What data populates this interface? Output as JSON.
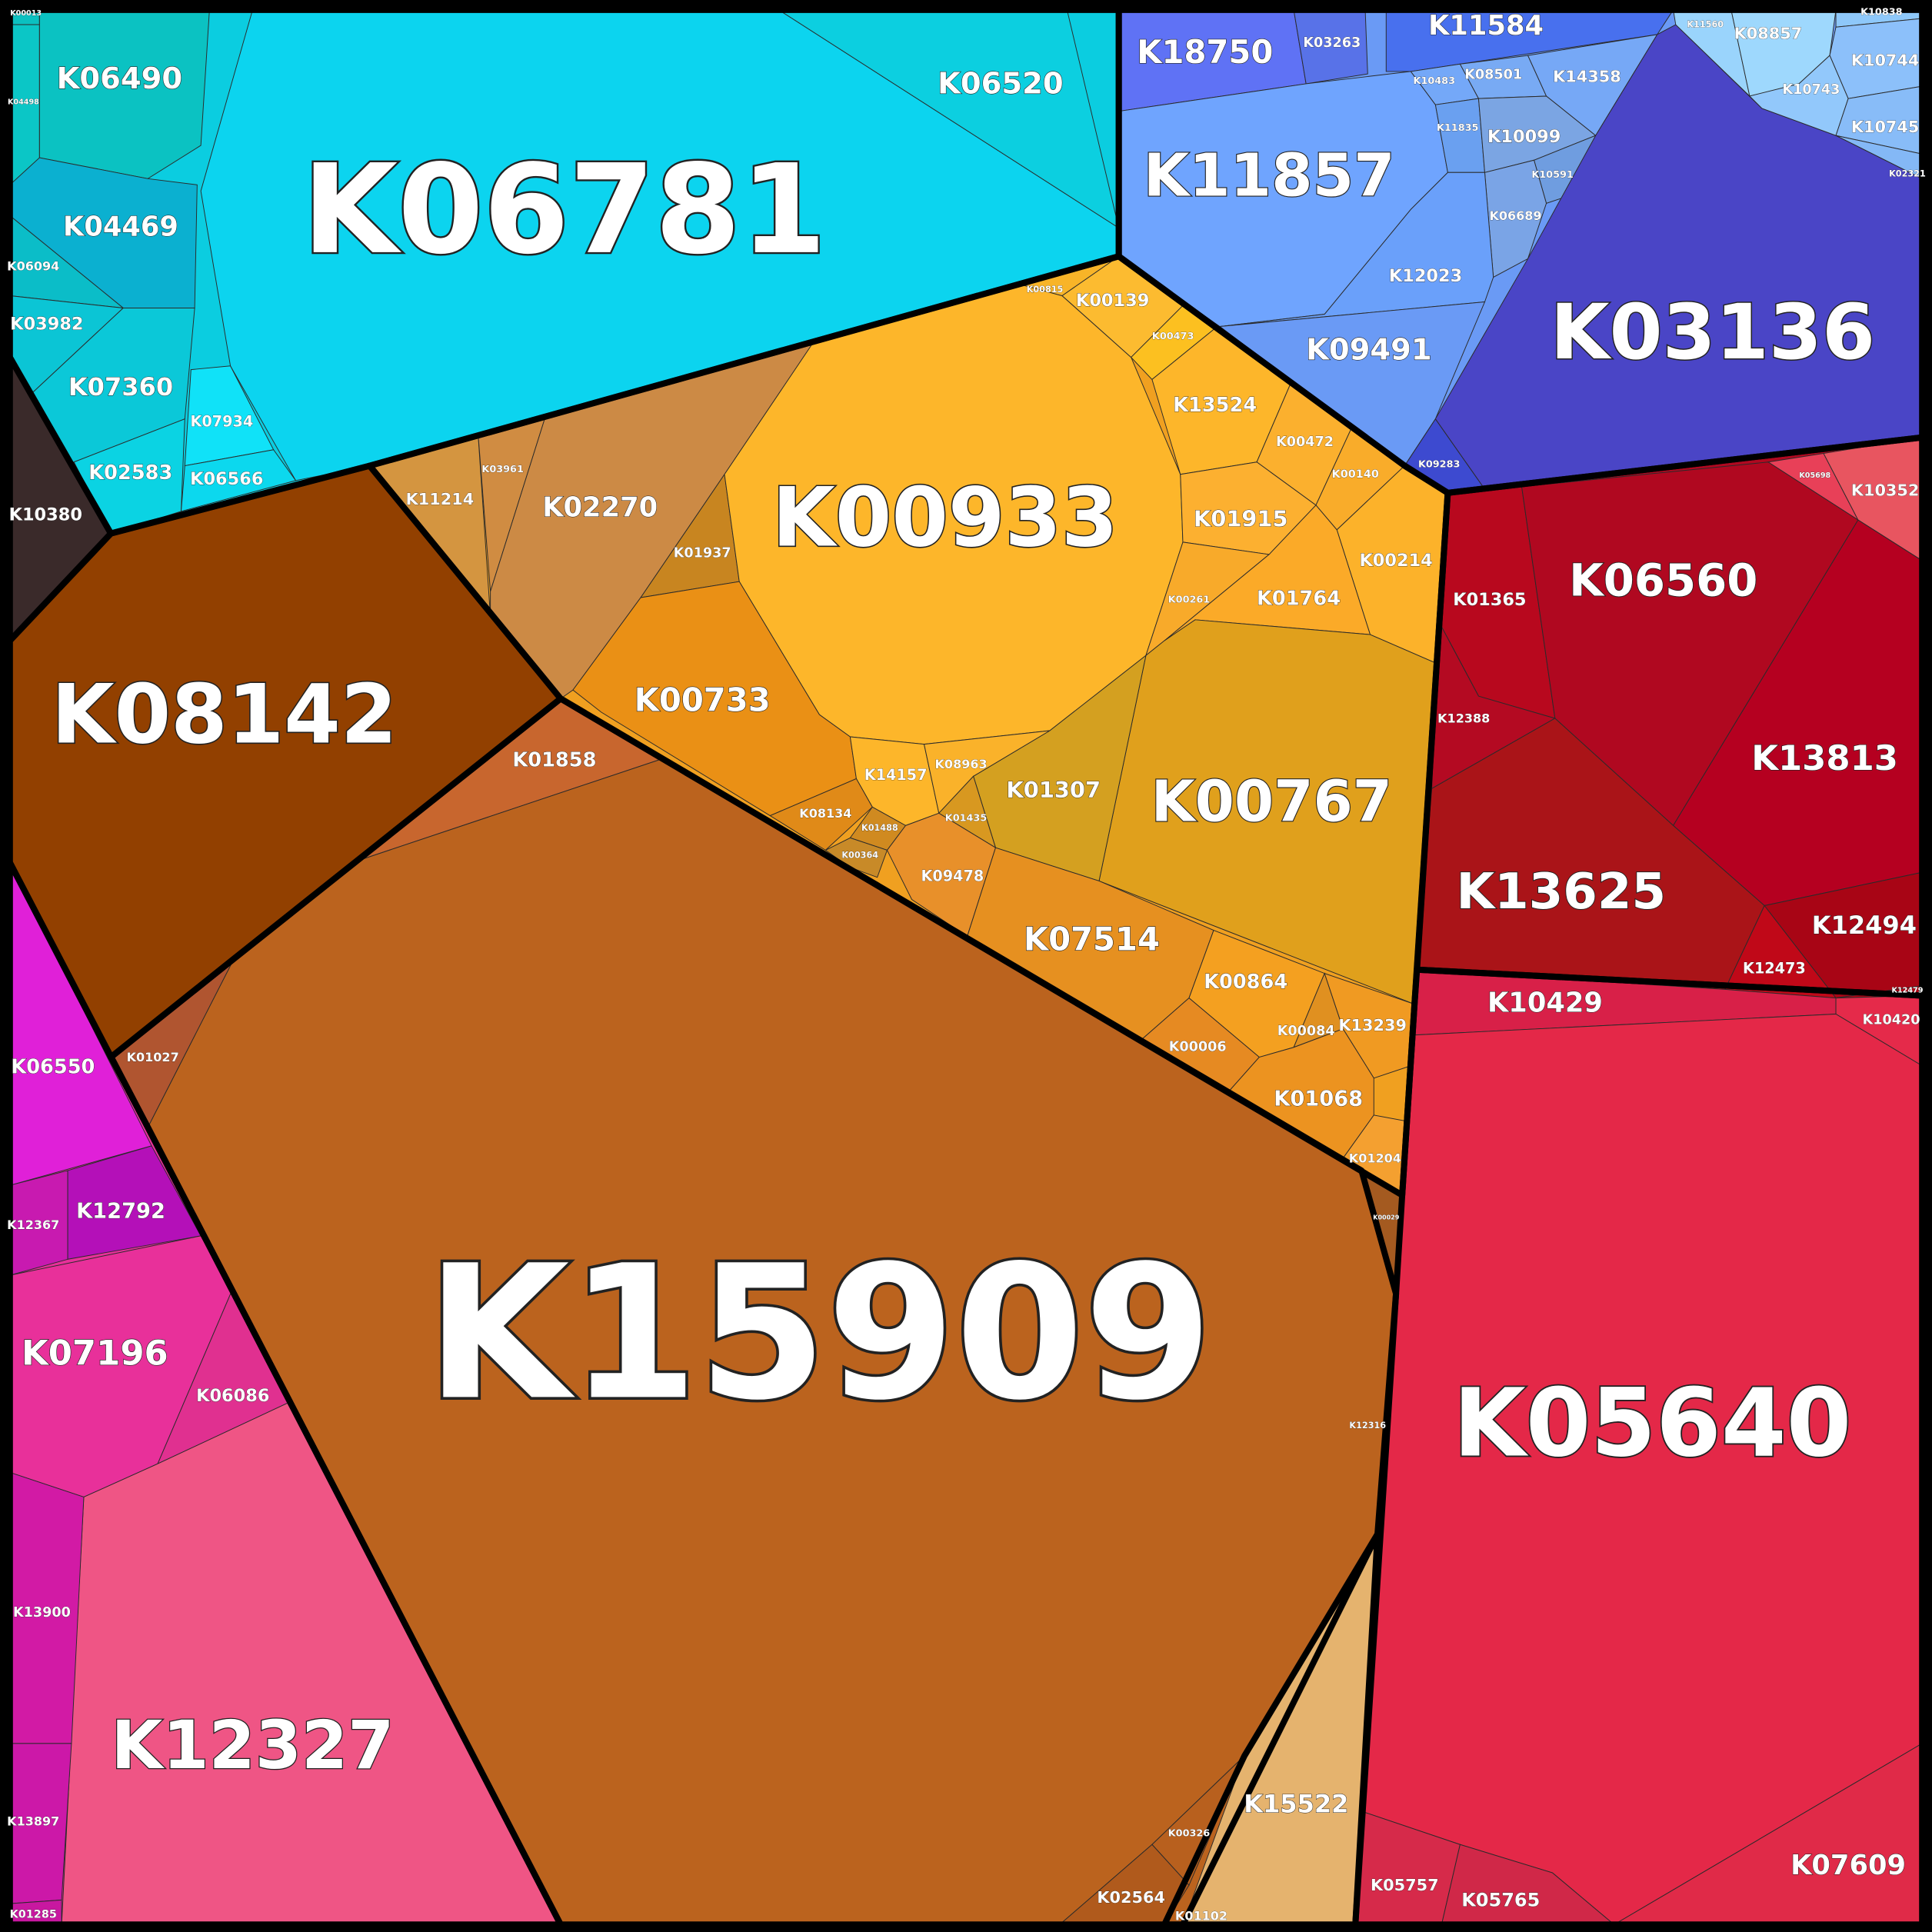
{
  "cells": [
    {
      "label": "K06781"
    },
    {
      "label": "K06520"
    },
    {
      "label": "K06490"
    },
    {
      "label": "K04469"
    },
    {
      "label": "K06094"
    },
    {
      "label": "K03982"
    },
    {
      "label": "K07360"
    },
    {
      "label": "K02583"
    },
    {
      "label": "K07934"
    },
    {
      "label": "K06566"
    },
    {
      "label": "K10380"
    },
    {
      "label": "K08142"
    },
    {
      "label": "K11214"
    },
    {
      "label": "K03961"
    },
    {
      "label": "K02270"
    },
    {
      "label": "K01937"
    },
    {
      "label": "K00933"
    },
    {
      "label": "K00733"
    },
    {
      "label": "K01858"
    },
    {
      "label": "K01027"
    },
    {
      "label": "K15909"
    },
    {
      "label": "K00139"
    },
    {
      "label": "K00815"
    },
    {
      "label": "K00473"
    },
    {
      "label": "K13524"
    },
    {
      "label": "K00472"
    },
    {
      "label": "K00140"
    },
    {
      "label": "K01915"
    },
    {
      "label": "K00214"
    },
    {
      "label": "K00261"
    },
    {
      "label": "K01764"
    },
    {
      "label": "K00767"
    },
    {
      "label": "K01307"
    },
    {
      "label": "K14157"
    },
    {
      "label": "K08963"
    },
    {
      "label": "K08134"
    },
    {
      "label": "K01435"
    },
    {
      "label": "K01488"
    },
    {
      "label": "K00364"
    },
    {
      "label": "K09478"
    },
    {
      "label": "K07514"
    },
    {
      "label": "K00864"
    },
    {
      "label": "K00006"
    },
    {
      "label": "K00084"
    },
    {
      "label": "K13239"
    },
    {
      "label": "K01068"
    },
    {
      "label": "K01204"
    },
    {
      "label": "K00029"
    },
    {
      "label": "K12316"
    },
    {
      "label": "K15522"
    },
    {
      "label": "K00326"
    },
    {
      "label": "K02564"
    },
    {
      "label": "K01102"
    },
    {
      "label": "K18750"
    },
    {
      "label": "K03263"
    },
    {
      "label": "K11584"
    },
    {
      "label": "K11857"
    },
    {
      "label": "K10483"
    },
    {
      "label": "K08501"
    },
    {
      "label": "K14358"
    },
    {
      "label": "K11835"
    },
    {
      "label": "K10099"
    },
    {
      "label": "K10591"
    },
    {
      "label": "K06689"
    },
    {
      "label": "K12023"
    },
    {
      "label": "K09491"
    },
    {
      "label": "K09283"
    },
    {
      "label": "K03136"
    },
    {
      "label": "K11560"
    },
    {
      "label": "K08857"
    },
    {
      "label": "K10838"
    },
    {
      "label": "K10744"
    },
    {
      "label": "K10743"
    },
    {
      "label": "K10745"
    },
    {
      "label": "K02321"
    },
    {
      "label": "K05698"
    },
    {
      "label": "K10352"
    },
    {
      "label": "K01365"
    },
    {
      "label": "K06560"
    },
    {
      "label": "K12388"
    },
    {
      "label": "K13813"
    },
    {
      "label": "K13625"
    },
    {
      "label": "K12494"
    },
    {
      "label": "K12473"
    },
    {
      "label": "K12479"
    },
    {
      "label": "K10429"
    },
    {
      "label": "K10420"
    },
    {
      "label": "K05640"
    },
    {
      "label": "K07609"
    },
    {
      "label": "K05757"
    },
    {
      "label": "K05765"
    },
    {
      "label": "K06550"
    },
    {
      "label": "K12367"
    },
    {
      "label": "K12792"
    },
    {
      "label": "K07196"
    },
    {
      "label": "K06086"
    },
    {
      "label": "K12327"
    },
    {
      "label": "K13900"
    },
    {
      "label": "K13897"
    },
    {
      "label": "K01285"
    },
    {
      "label": "K00013"
    },
    {
      "label": "K04498"
    }
  ]
}
